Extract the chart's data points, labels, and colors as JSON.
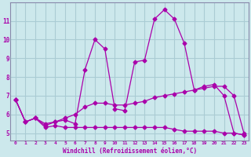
{
  "xlabel": "Windchill (Refroidissement éolien,°C)",
  "bg_color": "#cce8ec",
  "grid_color": "#aaccd4",
  "line_color": "#aa00aa",
  "spine_color": "#8888aa",
  "x_ticks": [
    0,
    1,
    2,
    3,
    4,
    5,
    6,
    7,
    8,
    9,
    10,
    11,
    12,
    13,
    14,
    15,
    16,
    17,
    18,
    19,
    20,
    21,
    22,
    23
  ],
  "y_ticks": [
    5,
    6,
    7,
    8,
    9,
    10,
    11
  ],
  "ylim": [
    4.6,
    12.0
  ],
  "xlim": [
    -0.5,
    23.5
  ],
  "line1_x": [
    0,
    1,
    2,
    3,
    4,
    5,
    6,
    7,
    8,
    9,
    10,
    11,
    12,
    13,
    14,
    15,
    16,
    17,
    18,
    19,
    20,
    21,
    22,
    23
  ],
  "line1_y": [
    6.8,
    5.6,
    5.8,
    5.4,
    5.6,
    5.7,
    5.5,
    8.4,
    10.0,
    9.5,
    6.3,
    6.2,
    8.8,
    8.9,
    11.1,
    11.6,
    11.1,
    9.8,
    7.3,
    7.5,
    7.6,
    7.0,
    5.0,
    4.9
  ],
  "line2_x": [
    0,
    1,
    2,
    3,
    4,
    5,
    6,
    7,
    8,
    9,
    10,
    11,
    12,
    13,
    14,
    15,
    16,
    17,
    18,
    19,
    20,
    21,
    22,
    23
  ],
  "line2_y": [
    6.8,
    5.6,
    5.8,
    5.5,
    5.6,
    5.8,
    6.0,
    6.4,
    6.6,
    6.6,
    6.5,
    6.5,
    6.6,
    6.7,
    6.9,
    7.0,
    7.1,
    7.2,
    7.3,
    7.4,
    7.5,
    7.5,
    7.0,
    5.0
  ],
  "line3_x": [
    0,
    1,
    2,
    3,
    4,
    5,
    6,
    7,
    8,
    9,
    10,
    11,
    12,
    13,
    14,
    15,
    16,
    17,
    18,
    19,
    20,
    21,
    22,
    23
  ],
  "line3_y": [
    6.8,
    5.6,
    5.8,
    5.3,
    5.4,
    5.3,
    5.3,
    5.3,
    5.3,
    5.3,
    5.3,
    5.3,
    5.3,
    5.3,
    5.3,
    5.3,
    5.2,
    5.1,
    5.1,
    5.1,
    5.1,
    5.0,
    5.0,
    4.9
  ]
}
